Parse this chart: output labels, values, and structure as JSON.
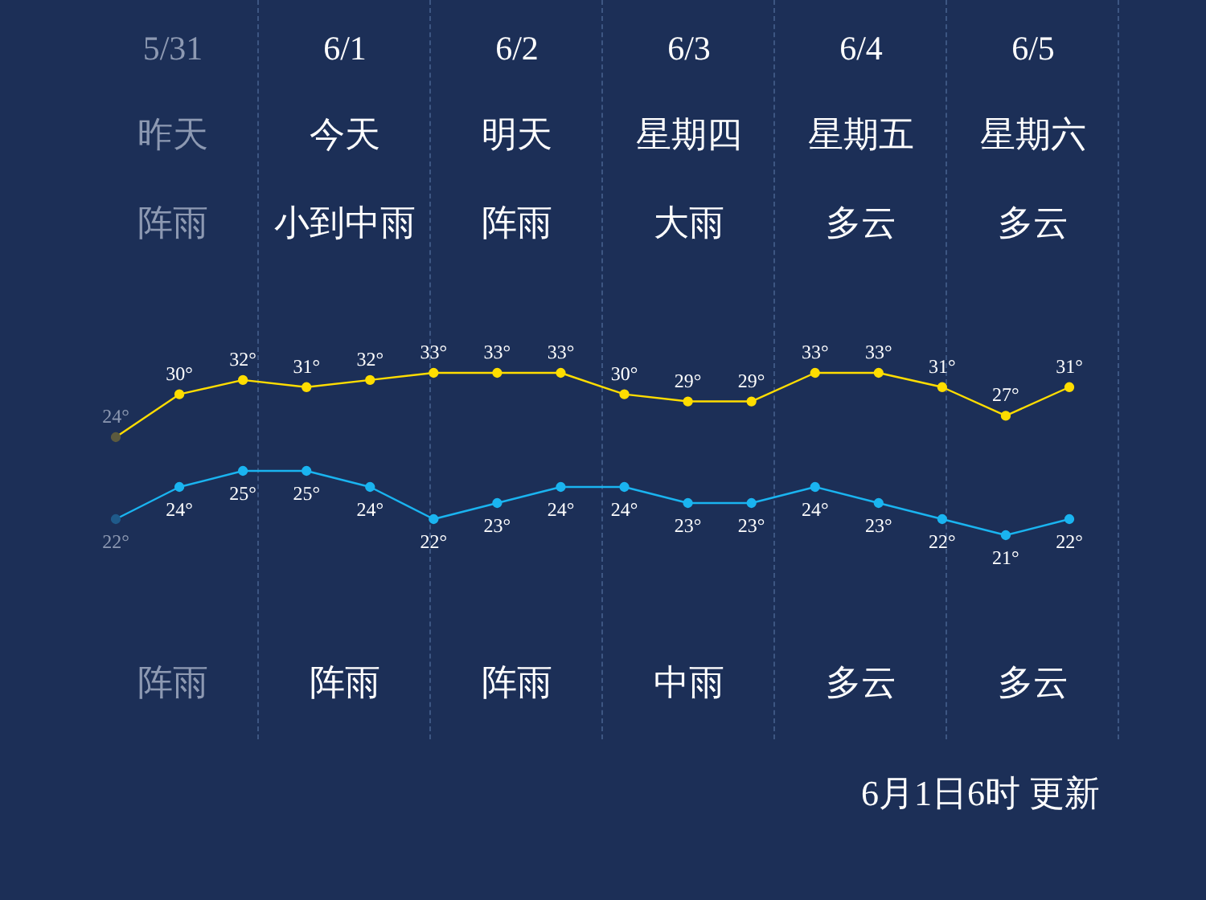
{
  "chart_data": [
    {
      "type": "line",
      "categories": [
        null,
        null,
        null,
        null,
        null,
        null,
        null,
        null,
        null,
        null,
        null,
        null,
        null,
        null,
        null,
        null
      ],
      "tick_labels": false,
      "marker": "circle",
      "series": [
        {
          "color": "#ffdd00",
          "colors": [
            "#5c5a3e",
            "#ffdd00",
            "#ffdd00",
            "#ffdd00",
            "#ffdd00",
            "#ffdd00",
            "#ffdd00",
            "#ffdd00",
            "#ffdd00",
            "#ffdd00",
            "#ffdd00",
            "#ffdd00",
            "#ffdd00",
            "#ffdd00",
            "#ffdd00",
            "#ffdd00"
          ],
          "values": [
            24,
            30,
            32,
            31,
            32,
            33,
            33,
            33,
            30,
            29,
            29,
            33,
            33,
            31,
            27,
            31
          ],
          "value_labels": [
            "24°",
            "30°",
            "32°",
            "31°",
            "32°",
            "33°",
            "33°",
            "33°",
            "30°",
            "29°",
            "29°",
            "33°",
            "33°",
            "31°",
            "27°",
            "31°"
          ]
        }
      ],
      "annotations": [
        "5/31",
        "6/1",
        "6/2",
        "6/3",
        "6/4",
        "6/5",
        "昨天",
        "今天",
        "明天",
        "星期四",
        "星期五",
        "星期六",
        "阵雨",
        "小到中雨",
        "阵雨",
        "大雨",
        "多云",
        "多云",
        "阵雨",
        "阵雨",
        "阵雨",
        "中雨",
        "多云",
        "多云",
        "6月1日6时 更新"
      ]
    },
    {
      "type": "line",
      "categories": [
        null,
        null,
        null,
        null,
        null,
        null,
        null,
        null,
        null,
        null,
        null,
        null,
        null,
        null,
        null,
        null
      ],
      "tick_labels": false,
      "marker": "circle",
      "series": [
        {
          "color": "#1ab4f0",
          "colors": [
            "#1f5a8a",
            "#1ab4f0",
            "#1ab4f0",
            "#1ab4f0",
            "#1ab4f0",
            "#1ab4f0",
            "#1ab4f0",
            "#1ab4f0",
            "#1ab4f0",
            "#1ab4f0",
            "#1ab4f0",
            "#1ab4f0",
            "#1ab4f0",
            "#1ab4f0",
            "#1ab4f0",
            "#1ab4f0"
          ],
          "values": [
            22,
            24,
            25,
            25,
            24,
            22,
            23,
            24,
            24,
            23,
            23,
            24,
            23,
            22,
            21,
            22
          ],
          "value_labels": [
            "22°",
            "24°",
            "25°",
            "25°",
            "24°",
            "22°",
            "23°",
            "24°",
            "24°",
            "23°",
            "23°",
            "24°",
            "23°",
            "22°",
            "21°",
            "22°"
          ]
        }
      ]
    }
  ]
}
